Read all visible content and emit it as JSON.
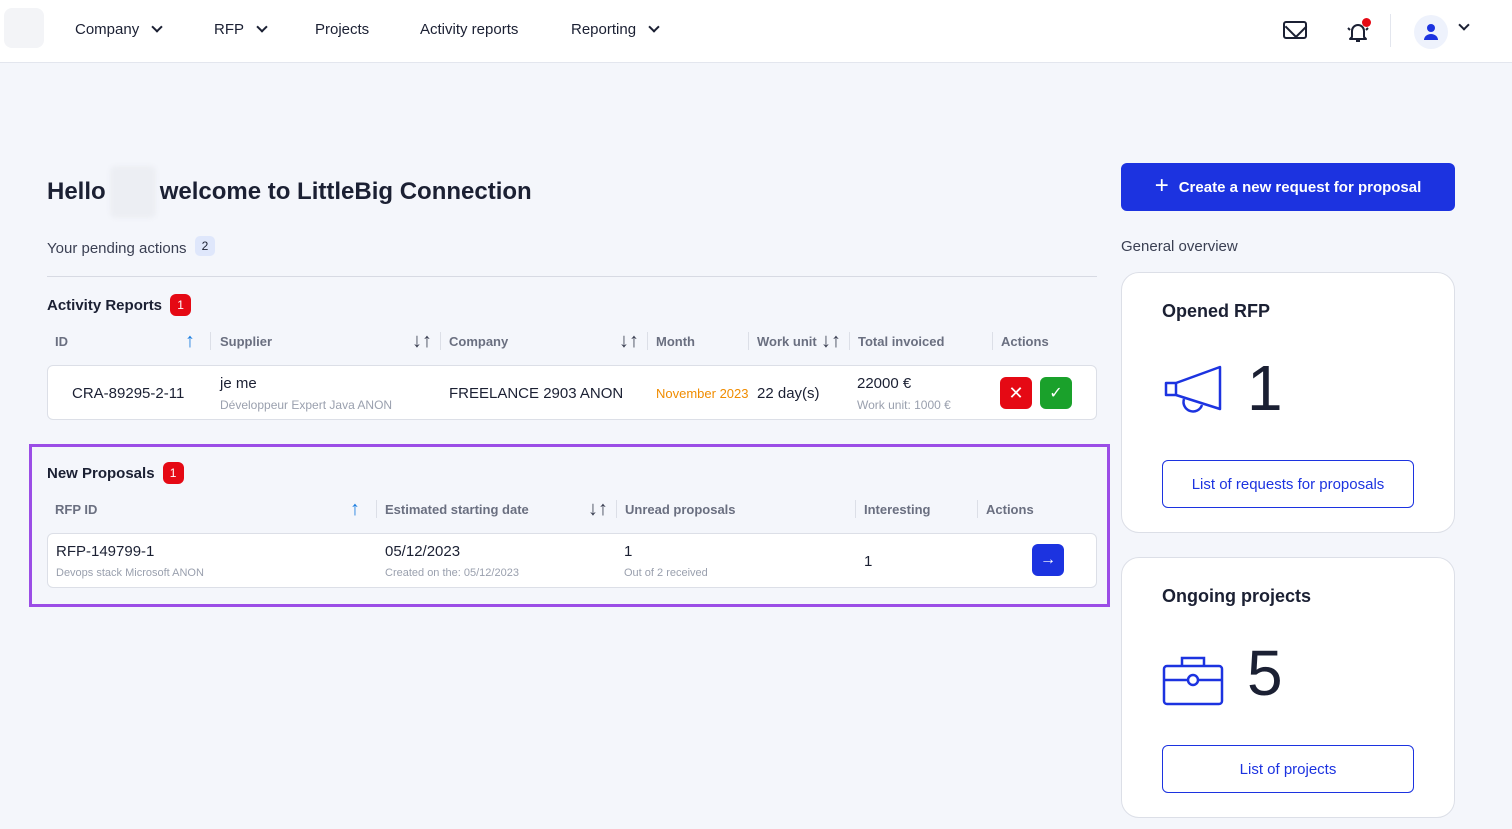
{
  "nav": {
    "items": [
      {
        "label": "Company",
        "dropdown": true
      },
      {
        "label": "RFP",
        "dropdown": true
      },
      {
        "label": "Projects",
        "dropdown": false
      },
      {
        "label": "Activity reports",
        "dropdown": false
      },
      {
        "label": "Reporting",
        "dropdown": true
      }
    ],
    "icons": [
      "mail-icon",
      "bell-icon",
      "user-avatar-icon",
      "chevron-down-icon"
    ],
    "notification_dot_color": "#e50914"
  },
  "greeting": {
    "hello": "Hello",
    "welcome": "welcome to LittleBig Connection"
  },
  "pending": {
    "label": "Your pending actions",
    "count": "2"
  },
  "activity_reports": {
    "title": "Activity Reports",
    "badge": "1",
    "columns": [
      "ID",
      "Supplier",
      "Company",
      "Month",
      "Work unit",
      "Total invoiced",
      "Actions"
    ],
    "rows": [
      {
        "id": "CRA-89295-2-11",
        "supplier": "je me",
        "supplier_sub": "Développeur Expert Java ANON",
        "company": "FREELANCE 2903 ANON",
        "month": "November 2023",
        "work_unit": "22 day(s)",
        "total": "22000 €",
        "total_sub": "Work unit: 1000 €"
      }
    ]
  },
  "new_proposals": {
    "title": "New Proposals",
    "badge": "1",
    "columns": [
      "RFP ID",
      "Estimated starting date",
      "Unread proposals",
      "Interesting",
      "Actions"
    ],
    "rows": [
      {
        "rfp_id": "RFP-149799-1",
        "rfp_sub": "Devops stack Microsoft ANON",
        "start_date": "05/12/2023",
        "start_sub": "Created on the: 05/12/2023",
        "unread": "1",
        "unread_sub": "Out of 2 received",
        "interesting": "1"
      }
    ]
  },
  "sidebar": {
    "create_button": "Create a new request for proposal",
    "overview_label": "General overview",
    "opened_rfp": {
      "title": "Opened RFP",
      "count": "1",
      "link": "List of requests for proposals"
    },
    "ongoing_projects": {
      "title": "Ongoing projects",
      "count": "5",
      "link": "List of projects"
    }
  },
  "colors": {
    "primary": "#1c33e0",
    "danger": "#e50914",
    "success": "#1aa12b",
    "month_accent": "#f08c00",
    "highlight": "#9b4de6",
    "sort_active": "#1a7de0"
  }
}
